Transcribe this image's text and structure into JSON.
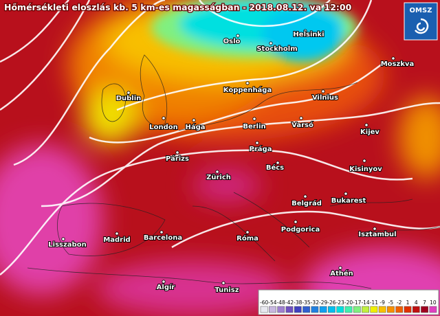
{
  "title": "Hőmérsékleti eloszlás kb. 5 km-es magasságban - 2018.08.12. va 12:00",
  "logo": "OMSZ",
  "cities": [
    "Oslo",
    "Helsinki",
    "Stockholm",
    "Moszkva",
    "Koppenhága",
    "Vilnius",
    "Dublin",
    "London",
    "Hága",
    "Berlin",
    "Varsó",
    "Kijev",
    "Párizs",
    "Prága",
    "Bécs",
    "Kisinyov",
    "Zürich",
    "Belgrád",
    "Bukarest",
    "Podgorica",
    "Lisszabon",
    "Madrid",
    "Barcelona",
    "Róma",
    "Isztambul",
    "Athén",
    "Algír",
    "Tunisz"
  ],
  "legend": {
    "ticks": [
      -60,
      -54,
      -48,
      -42,
      -38,
      -35,
      -32,
      -29,
      -26,
      -23,
      -20,
      -17,
      -14,
      -11,
      -9,
      -5,
      -2,
      1,
      4,
      7,
      10
    ],
    "colors": [
      "#e8e8f0",
      "#c8b8e0",
      "#a080d0",
      "#7050c0",
      "#4040c0",
      "#3060d0",
      "#2080e0",
      "#10a0f0",
      "#00c0f0",
      "#00e0e0",
      "#40f0b0",
      "#80f080",
      "#c0f040",
      "#f0f000",
      "#f8c000",
      "#f89000",
      "#f06000",
      "#e03000",
      "#c01010",
      "#a00020",
      "#e040c0"
    ]
  }
}
